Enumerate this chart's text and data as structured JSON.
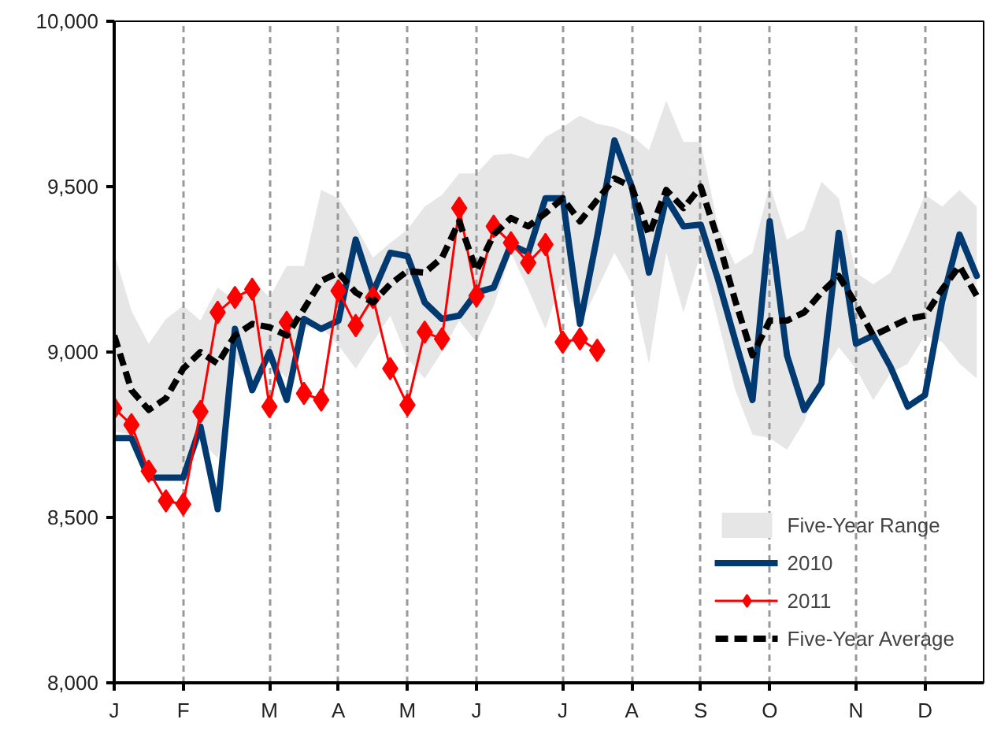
{
  "chart_data": {
    "type": "line",
    "categories": [
      "J",
      null,
      null,
      null,
      "F",
      null,
      null,
      null,
      null,
      "M",
      null,
      null,
      null,
      "A",
      null,
      null,
      null,
      "M",
      null,
      null,
      null,
      "J",
      null,
      null,
      null,
      null,
      "J",
      null,
      null,
      null,
      "A",
      null,
      null,
      null,
      "S",
      null,
      null,
      null,
      "O",
      null,
      null,
      null,
      null,
      "N",
      null,
      null,
      null,
      "D",
      null,
      null,
      null
    ],
    "ylim": [
      8000,
      10000
    ],
    "yticks": [
      {
        "value": 8000,
        "label": "8,000"
      },
      {
        "value": 8500,
        "label": "8,500"
      },
      {
        "value": 9000,
        "label": "9,000"
      },
      {
        "value": 9500,
        "label": "9,500"
      },
      {
        "value": 10000,
        "label": "10,000"
      }
    ],
    "grid": "x",
    "legend": "bottom right",
    "annotations": [
      "Five-Year Range"
    ],
    "series": [
      {
        "name": "2010",
        "color": "#003a70",
        "marker": "none",
        "line_style": "solid",
        "values": [
          8740,
          8740,
          8620,
          8620,
          8620,
          8775,
          8525,
          9070,
          8885,
          9000,
          8855,
          9100,
          9070,
          9095,
          9340,
          9180,
          9300,
          9290,
          9150,
          9100,
          9110,
          9180,
          9195,
          9325,
          9300,
          9465,
          9465,
          9085,
          9350,
          9640,
          9500,
          9240,
          9465,
          9380,
          9385,
          9220,
          9035,
          8855,
          9395,
          8990,
          8825,
          8905,
          9360,
          9025,
          9050,
          8955,
          8835,
          8870,
          9155,
          9355,
          9230
        ]
      },
      {
        "name": "2011",
        "color": "#ff0000",
        "marker": "diamond",
        "line_style": "solid",
        "values": [
          8830,
          8780,
          8640,
          8550,
          8540,
          8820,
          9120,
          9165,
          9190,
          8835,
          9090,
          8875,
          8855,
          9185,
          9080,
          9165,
          8950,
          8840,
          9060,
          9040,
          9435,
          9170,
          9380,
          9330,
          9270,
          9325,
          9030,
          9040,
          9005,
          null,
          null,
          null,
          null,
          null,
          null,
          null,
          null,
          null,
          null,
          null,
          null,
          null,
          null,
          null,
          null,
          null,
          null,
          null,
          null,
          null,
          null
        ]
      },
      {
        "name": "Five-Year Average",
        "color": "#000000",
        "marker": "none",
        "line_style": "dashed",
        "values": [
          9050,
          8885,
          8825,
          8860,
          8950,
          9000,
          8965,
          9050,
          9085,
          9075,
          9050,
          9130,
          9215,
          9240,
          9180,
          9150,
          9205,
          9245,
          9240,
          9285,
          9395,
          9245,
          9355,
          9405,
          9380,
          9420,
          9465,
          9395,
          9460,
          9525,
          9500,
          9355,
          9490,
          9435,
          9500,
          9340,
          9155,
          8990,
          9095,
          9095,
          9120,
          9180,
          9230,
          9145,
          9050,
          9075,
          9100,
          9110,
          9190,
          9260,
          9170
        ],
        "lower": [
          8760,
          8750,
          8635,
          8610,
          8610,
          8730,
          8680,
          8980,
          8885,
          8975,
          8920,
          9075,
          9075,
          9020,
          8950,
          9030,
          9110,
          8980,
          8920,
          9000,
          9095,
          9030,
          9140,
          9300,
          9190,
          9070,
          9230,
          9085,
          9190,
          9300,
          9205,
          8965,
          9300,
          9120,
          9300,
          9095,
          8885,
          8750,
          8740,
          8705,
          8790,
          8930,
          9015,
          8950,
          8855,
          8935,
          8965,
          9050,
          9030,
          8965,
          8920
        ],
        "upper": [
          9300,
          9125,
          9025,
          9100,
          9140,
          9095,
          9195,
          9155,
          9220,
          9165,
          9260,
          9260,
          9490,
          9465,
          9380,
          9285,
          9330,
          9370,
          9440,
          9475,
          9540,
          9540,
          9595,
          9600,
          9585,
          9650,
          9680,
          9715,
          9690,
          9680,
          9655,
          9610,
          9760,
          9635,
          9635,
          9380,
          9265,
          9300,
          9505,
          9340,
          9370,
          9515,
          9465,
          9240,
          9205,
          9240,
          9350,
          9475,
          9440,
          9490,
          9440
        ]
      }
    ]
  }
}
